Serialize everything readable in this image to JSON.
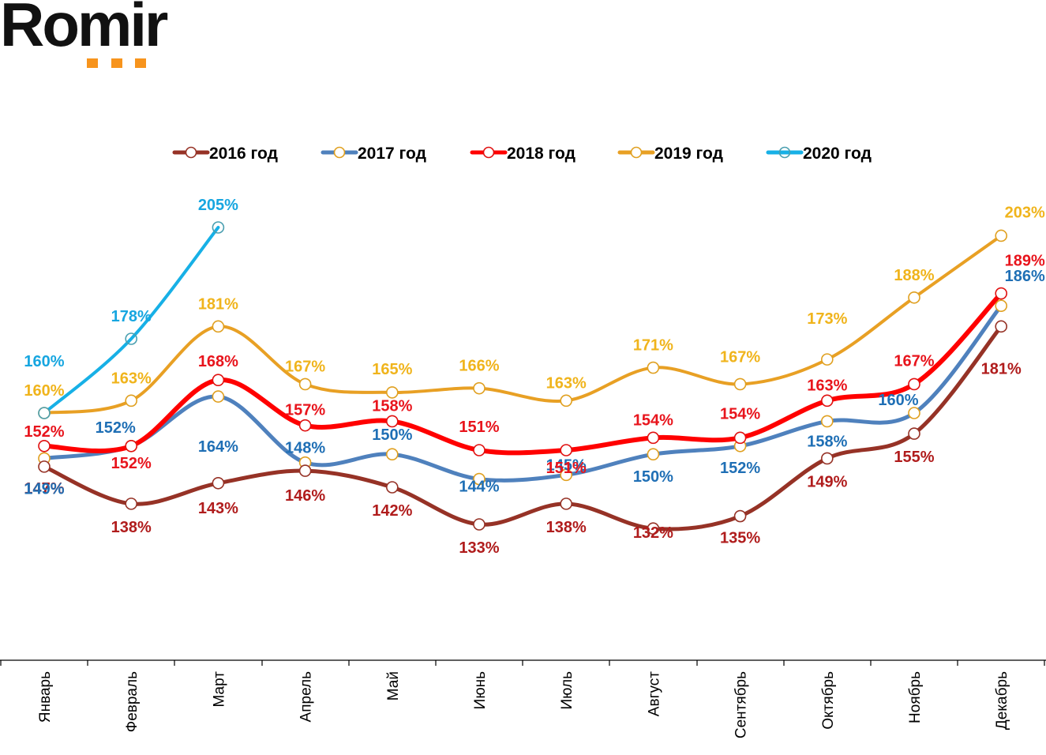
{
  "logo": {
    "text": "Romir",
    "dot_color": "#f7941d"
  },
  "chart_data": {
    "type": "line",
    "title": "",
    "xlabel": "",
    "ylabel": "",
    "ylim": [
      110,
      220
    ],
    "grid": false,
    "legend_position": "top-center",
    "categories": [
      "Январь",
      "Февраль",
      "Март",
      "Апрель",
      "Май",
      "Июнь",
      "Июль",
      "Август",
      "Сентябрь",
      "Октябрь",
      "Ноябрь",
      "Декабрь"
    ],
    "value_suffix": "%",
    "series": [
      {
        "name": "2016 год",
        "line_color": "#963226",
        "marker_edge": "#963226",
        "label_color": "#b01c1c",
        "values": [
          147,
          138,
          143,
          146,
          142,
          133,
          138,
          132,
          135,
          149,
          155,
          181
        ]
      },
      {
        "name": "2017 год",
        "line_color": "#4f81bd",
        "marker_edge": "#e0a020",
        "label_color": "#1f6fb5",
        "values": [
          149,
          152,
          164,
          148,
          150,
          144,
          145,
          150,
          152,
          158,
          160,
          186
        ]
      },
      {
        "name": "2018 год",
        "line_color": "#ff0000",
        "marker_edge": "#e01010",
        "label_color": "#e8141c",
        "values": [
          152,
          152,
          168,
          157,
          158,
          151,
          151,
          154,
          154,
          163,
          167,
          189
        ]
      },
      {
        "name": "2019 год",
        "line_color": "#e8a024",
        "marker_edge": "#e0a020",
        "label_color": "#f0b41c",
        "values": [
          160,
          163,
          181,
          167,
          165,
          166,
          163,
          171,
          167,
          173,
          188,
          203
        ]
      },
      {
        "name": "2020 год",
        "line_color": "#17b0e6",
        "marker_edge": "#4a9fb0",
        "label_color": "#17a6e0",
        "values": [
          160,
          178,
          205
        ]
      }
    ]
  }
}
